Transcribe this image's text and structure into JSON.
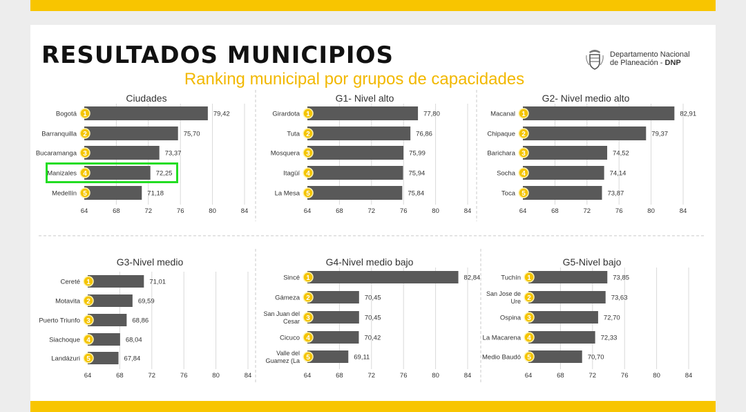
{
  "header": {
    "title": "RESULTADOS MUNICIPIOS",
    "subtitle": "Ranking municipal por grupos de capacidades",
    "logo_line1": "Departamento Nacional",
    "logo_line2_a": "de Planeación - ",
    "logo_line2_b": "DNP"
  },
  "colors": {
    "accent": "#f8c500",
    "bar": "#595959",
    "badge": "#f4c400",
    "highlight": "#22dd22"
  },
  "chart_data": [
    {
      "type": "bar",
      "title": "Ciudades",
      "categories": [
        "Bogotá",
        "Barranquilla",
        "Bucaramanga",
        "Manizales",
        "Medellín"
      ],
      "values": [
        79.42,
        75.7,
        73.37,
        72.25,
        71.18
      ],
      "value_labels": [
        "79,42",
        "75,70",
        "73,37",
        "72,25",
        "71,18"
      ],
      "ranks": [
        "1",
        "2",
        "3",
        "4",
        "5"
      ],
      "xlim": [
        64,
        84
      ],
      "ticks": [
        "64",
        "68",
        "72",
        "76",
        "80",
        "84"
      ],
      "highlighted": "Manizales"
    },
    {
      "type": "bar",
      "title": "G1- Nivel alto",
      "categories": [
        "Girardota",
        "Tuta",
        "Mosquera",
        "Itagüí",
        "La Mesa"
      ],
      "values": [
        77.8,
        76.86,
        75.99,
        75.94,
        75.84
      ],
      "value_labels": [
        "77,80",
        "76,86",
        "75,99",
        "75,94",
        "75,84"
      ],
      "ranks": [
        "1",
        "2",
        "3",
        "4",
        "5"
      ],
      "xlim": [
        64,
        84
      ],
      "ticks": [
        "64",
        "68",
        "72",
        "76",
        "80",
        "84"
      ]
    },
    {
      "type": "bar",
      "title": "G2- Nivel medio alto",
      "categories": [
        "Macanal",
        "Chipaque",
        "Barichara",
        "Socha",
        "Toca"
      ],
      "values": [
        82.91,
        79.37,
        74.52,
        74.14,
        73.87
      ],
      "value_labels": [
        "82,91",
        "79,37",
        "74,52",
        "74,14",
        "73,87"
      ],
      "ranks": [
        "1",
        "2",
        "3",
        "4",
        "5"
      ],
      "xlim": [
        64,
        84
      ],
      "ticks": [
        "64",
        "68",
        "72",
        "76",
        "80",
        "84"
      ]
    },
    {
      "type": "bar",
      "title": "G3-Nivel medio",
      "categories": [
        "Cereté",
        "Motavita",
        "Puerto Triunfo",
        "Siachoque",
        "Landázuri"
      ],
      "values": [
        71.01,
        69.59,
        68.86,
        68.04,
        67.84
      ],
      "value_labels": [
        "71,01",
        "69,59",
        "68,86",
        "68,04",
        "67,84"
      ],
      "ranks": [
        "1",
        "2",
        "3",
        "4",
        "5"
      ],
      "xlim": [
        64,
        84
      ],
      "ticks": [
        "64",
        "68",
        "72",
        "76",
        "80",
        "84"
      ]
    },
    {
      "type": "bar",
      "title": "G4-Nivel medio bajo",
      "categories": [
        "Sincé",
        "Gámeza",
        "San Juan del Cesar",
        "Cicuco",
        "Valle del Guamez (La"
      ],
      "values": [
        82.84,
        70.45,
        70.45,
        70.42,
        69.11
      ],
      "value_labels": [
        "82,84",
        "70,45",
        "70,45",
        "70,42",
        "69,11"
      ],
      "ranks": [
        "1",
        "2",
        "3",
        "4",
        "5"
      ],
      "xlim": [
        64,
        84
      ],
      "ticks": [
        "64",
        "68",
        "72",
        "76",
        "80",
        "84"
      ]
    },
    {
      "type": "bar",
      "title": "G5-Nivel bajo",
      "categories": [
        "Tuchín",
        "San Jose de Ure",
        "Ospina",
        "La Macarena",
        "Medio Baudó"
      ],
      "values": [
        73.85,
        73.63,
        72.7,
        72.33,
        70.7
      ],
      "value_labels": [
        "73,85",
        "73,63",
        "72,70",
        "72,33",
        "70,70"
      ],
      "ranks": [
        "1",
        "2",
        "3",
        "4",
        "5"
      ],
      "xlim": [
        64,
        84
      ],
      "ticks": [
        "64",
        "68",
        "72",
        "76",
        "80",
        "84"
      ]
    }
  ]
}
